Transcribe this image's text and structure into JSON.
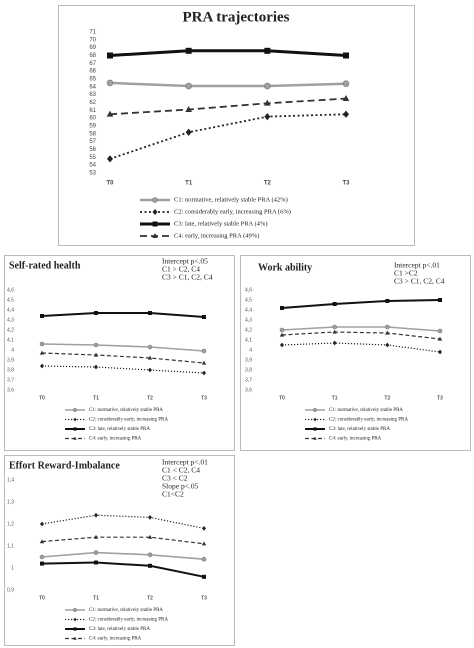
{
  "chart_data": [
    {
      "type": "line",
      "title": "PRA trajectories",
      "categories": [
        "T0",
        "T1",
        "T2",
        "T3"
      ],
      "ylim": [
        53,
        71
      ],
      "yticks": [
        53,
        54,
        55,
        56,
        57,
        58,
        59,
        60,
        61,
        62,
        63,
        64,
        65,
        66,
        67,
        68,
        69,
        70,
        71
      ],
      "grid": false,
      "series": [
        {
          "name": "C1: normative, relatively stable PRA (42%)",
          "color": "#a0a0a0",
          "marker": "circle",
          "dash": "solid",
          "values": [
            64.5,
            64.1,
            64.1,
            64.4
          ]
        },
        {
          "name": "C2: considerably early, increasing PRA (6%)",
          "color": "#222222",
          "marker": "diamond",
          "dash": "dotted",
          "values": [
            54.8,
            58.2,
            60.2,
            60.5
          ]
        },
        {
          "name": "C3: late, relatively stable PRA (4%)",
          "color": "#111111",
          "marker": "square",
          "dash": "solid",
          "values": [
            68.0,
            68.6,
            68.6,
            68.0
          ]
        },
        {
          "name": "C4: early, increasing PRA (49%)",
          "color": "#333333",
          "marker": "triangle",
          "dash": "dashed",
          "values": [
            60.5,
            61.1,
            61.9,
            62.5
          ]
        }
      ]
    },
    {
      "type": "line",
      "title": "Self-rated health",
      "annotation": [
        "Intercept p<.05",
        "C1 > C2, C4",
        "C3 > C1, C2, C4"
      ],
      "categories": [
        "T0",
        "T1",
        "T2",
        "T3"
      ],
      "ylim": [
        3.6,
        4.6
      ],
      "yticks": [
        {
          "value": 3.6,
          "label": "3,6"
        },
        {
          "value": 3.7,
          "label": "3,7"
        },
        {
          "value": 3.8,
          "label": "3,8"
        },
        {
          "value": 3.9,
          "label": "3,9"
        },
        4,
        {
          "value": 4.1,
          "label": "4,1"
        },
        {
          "value": 4.2,
          "label": "4,2"
        },
        {
          "value": 4.3,
          "label": "4,3"
        },
        {
          "value": 4.4,
          "label": "4,4"
        },
        {
          "value": 4.5,
          "label": "4,5"
        },
        {
          "value": 4.6,
          "label": "4,6"
        }
      ],
      "grid": false,
      "series": [
        {
          "name": "C1: normative, relatively stable PRA",
          "color": "#a0a0a0",
          "marker": "circle",
          "dash": "solid",
          "values": [
            4.06,
            4.05,
            4.03,
            3.99
          ]
        },
        {
          "name": "C2: considerably early, increasing PRA",
          "color": "#222222",
          "marker": "diamond",
          "dash": "dotted",
          "values": [
            3.84,
            3.83,
            3.8,
            3.77
          ]
        },
        {
          "name": "C3: late, relatively stable PRA",
          "color": "#111111",
          "marker": "square",
          "dash": "solid",
          "values": [
            4.34,
            4.37,
            4.37,
            4.33
          ]
        },
        {
          "name": "C4: early, increasing PRA",
          "color": "#333333",
          "marker": "triangle",
          "dash": "dashed",
          "values": [
            3.97,
            3.95,
            3.92,
            3.87
          ]
        }
      ]
    },
    {
      "type": "line",
      "title": "Work ability",
      "annotation": [
        "Intercept p<.01",
        "C1 >C2",
        "C3 > C1, C2, C4"
      ],
      "categories": [
        "T0",
        "T1",
        "T2",
        "T3"
      ],
      "ylim": [
        3.6,
        4.6
      ],
      "yticks": [
        {
          "value": 3.6,
          "label": "3,6"
        },
        {
          "value": 3.7,
          "label": "3,7"
        },
        {
          "value": 3.8,
          "label": "3,8"
        },
        {
          "value": 3.9,
          "label": "3,9"
        },
        4,
        {
          "value": 4.1,
          "label": "4,1"
        },
        {
          "value": 4.2,
          "label": "4,2"
        },
        {
          "value": 4.3,
          "label": "4,3"
        },
        {
          "value": 4.4,
          "label": "4,4"
        },
        {
          "value": 4.5,
          "label": "4,5"
        },
        {
          "value": 4.6,
          "label": "4,6"
        }
      ],
      "grid": false,
      "series": [
        {
          "name": "C1: normative, relatively stable PRA",
          "color": "#a0a0a0",
          "marker": "circle",
          "dash": "solid",
          "values": [
            4.2,
            4.23,
            4.23,
            4.19
          ]
        },
        {
          "name": "C2: considerably early, increasing PRA",
          "color": "#222222",
          "marker": "diamond",
          "dash": "dotted",
          "values": [
            4.05,
            4.07,
            4.05,
            3.98
          ]
        },
        {
          "name": "C3: late, relatively stable PRA",
          "color": "#111111",
          "marker": "square",
          "dash": "solid",
          "values": [
            4.42,
            4.46,
            4.49,
            4.5
          ]
        },
        {
          "name": "C4: early, increasing PRA",
          "color": "#333333",
          "marker": "triangle",
          "dash": "dashed",
          "values": [
            4.15,
            4.18,
            4.17,
            4.11
          ]
        }
      ]
    },
    {
      "type": "line",
      "title": "Effort Reward-Imbalance",
      "annotation": [
        "Intercept p<.01",
        "C1 < C2, C4",
        "C3 < C2",
        "Slope p<.05",
        "C1<C2"
      ],
      "categories": [
        "T0",
        "T1",
        "T2",
        "T3"
      ],
      "ylim": [
        0.9,
        1.4
      ],
      "yticks": [
        {
          "value": 0.9,
          "label": "0,9"
        },
        1,
        {
          "value": 1.1,
          "label": "1,1"
        },
        {
          "value": 1.2,
          "label": "1,2"
        },
        {
          "value": 1.3,
          "label": "1,3"
        },
        {
          "value": 1.4,
          "label": "1,4"
        }
      ],
      "grid": false,
      "series": [
        {
          "name": "C1: normative, relatively stable PRA",
          "color": "#a0a0a0",
          "marker": "circle",
          "dash": "solid",
          "values": [
            1.05,
            1.07,
            1.06,
            1.04
          ]
        },
        {
          "name": "C2: considerably early, increasing PRA",
          "color": "#222222",
          "marker": "diamond",
          "dash": "dotted",
          "values": [
            1.2,
            1.24,
            1.23,
            1.18
          ]
        },
        {
          "name": "C3: late, relatively stable PRA",
          "color": "#111111",
          "marker": "square",
          "dash": "solid",
          "values": [
            1.02,
            1.025,
            1.01,
            0.96
          ]
        },
        {
          "name": "C4: early, increasing PRA",
          "color": "#333333",
          "marker": "triangle",
          "dash": "dashed",
          "values": [
            1.12,
            1.14,
            1.14,
            1.11
          ]
        }
      ]
    }
  ]
}
